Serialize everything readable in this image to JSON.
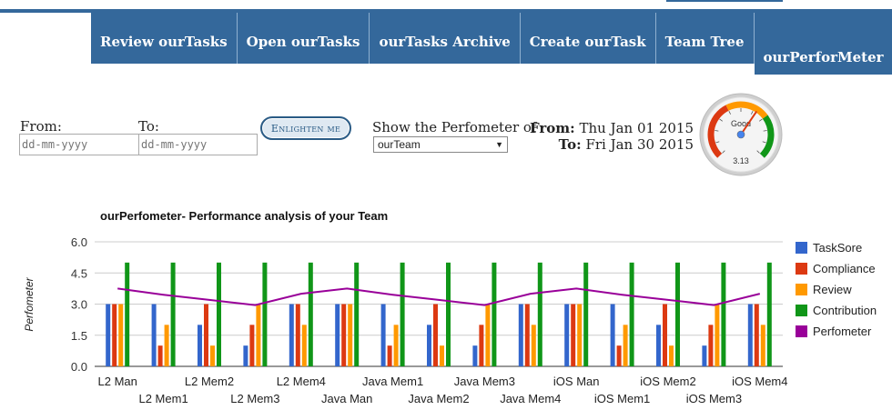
{
  "nav": {
    "items": [
      "Review ourTasks",
      "Open ourTasks",
      "ourTasks Archive",
      "Create ourTask",
      "Team Tree",
      "ourPerforMeter"
    ]
  },
  "filters": {
    "from_label": "From:",
    "to_label": "To:",
    "from_placeholder": "dd-mm-yyyy",
    "to_placeholder": "dd-mm-yyyy",
    "enlighten_label": "Enlighten me",
    "show_label": "Show the Perfometer of",
    "show_value": "ourTeam"
  },
  "range": {
    "from_label": "From:",
    "from_value": "Thu Jan 01 2015",
    "to_label": "To:",
    "to_value": "Fri Jan 30 2015"
  },
  "gauge": {
    "label": "Good",
    "value": "3.13",
    "level": 3.13,
    "max": 5,
    "colors": {
      "low": "#dc3912",
      "mid": "#ff9900",
      "high": "#109618"
    }
  },
  "chart_data": {
    "type": "bar",
    "title": "ourPerfometer- Performance analysis of your Team",
    "ylabel": "Perfometer",
    "xlabel": "",
    "ylim": [
      0,
      6
    ],
    "yticks": [
      "0.0",
      "1.5",
      "3.0",
      "4.5",
      "6.0"
    ],
    "yticks_values": [
      0,
      1.5,
      3,
      4.5,
      6
    ],
    "grid": true,
    "legend_position": "right",
    "categories": [
      "L2 Man",
      "L2 Mem1",
      "L2 Mem2",
      "L2 Mem3",
      "L2 Mem4",
      "Java Man",
      "Java Mem1",
      "Java Mem2",
      "Java Mem3",
      "Java Mem4",
      "iOS Man",
      "iOS Mem1",
      "iOS Mem2",
      "iOS Mem3",
      "iOS Mem4"
    ],
    "series": [
      {
        "name": "TaskSore",
        "color": "#3366cc",
        "values": [
          3,
          3,
          2,
          1,
          3,
          3,
          3,
          2,
          1,
          3,
          3,
          3,
          2,
          1,
          3
        ]
      },
      {
        "name": "Compliance",
        "color": "#dc3912",
        "values": [
          3,
          1,
          3,
          2,
          3,
          3,
          1,
          3,
          2,
          3,
          3,
          1,
          3,
          2,
          3
        ]
      },
      {
        "name": "Review",
        "color": "#ff9900",
        "values": [
          3,
          2,
          1,
          3,
          2,
          3,
          2,
          1,
          3,
          2,
          3,
          2,
          1,
          3,
          2
        ]
      },
      {
        "name": "Contribution",
        "color": "#109618",
        "values": [
          5,
          5,
          5,
          5,
          5,
          5,
          5,
          5,
          5,
          5,
          5,
          5,
          5,
          5,
          5
        ]
      }
    ],
    "line": {
      "name": "Perfometer",
      "color": "#990099",
      "values": [
        3.75,
        3.45,
        3.2,
        2.95,
        3.5,
        3.75,
        3.45,
        3.2,
        2.95,
        3.5,
        3.75,
        3.45,
        3.2,
        2.95,
        3.5
      ]
    }
  }
}
